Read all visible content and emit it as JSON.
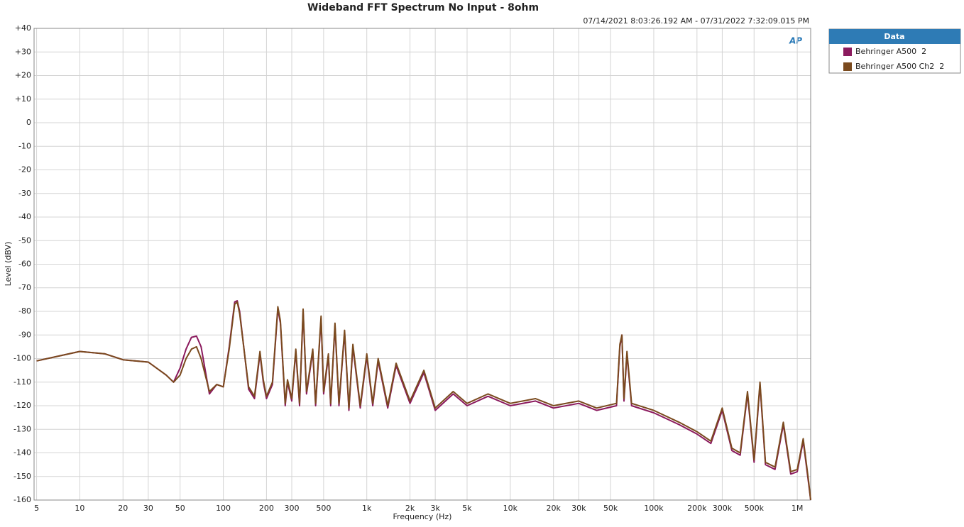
{
  "chart_data": {
    "type": "line",
    "title": "Wideband FFT Spectrum No Input - 8ohm",
    "subtitle": "07/14/2021 8:03:26.192 AM - 07/31/2022 7:32:09.015 PM",
    "x_label": "Frequency (Hz)",
    "y_label": "Level (dBV)",
    "logo": "AP",
    "legend_title": "Data",
    "legend": "right",
    "xscale": "log",
    "grid": true,
    "xlim": [
      4.8,
      1240000
    ],
    "ylim": [
      -160,
      40
    ],
    "xticks": [
      5,
      10,
      20,
      30,
      50,
      100,
      200,
      300,
      500,
      {
        "value": 1000,
        "label": "1k"
      },
      {
        "value": 2000,
        "label": "2k"
      },
      {
        "value": 3000,
        "label": "3k"
      },
      {
        "value": 5000,
        "label": "5k"
      },
      {
        "value": 10000,
        "label": "10k"
      },
      {
        "value": 20000,
        "label": "20k"
      },
      {
        "value": 30000,
        "label": "30k"
      },
      {
        "value": 50000,
        "label": "50k"
      },
      {
        "value": 100000,
        "label": "100k"
      },
      {
        "value": 200000,
        "label": "200k"
      },
      {
        "value": 300000,
        "label": "300k"
      },
      {
        "value": 500000,
        "label": "500k"
      },
      {
        "value": 1000000,
        "label": "1M"
      }
    ],
    "yticks": [
      {
        "value": 40,
        "label": "+40"
      },
      {
        "value": 30,
        "label": "+30"
      },
      {
        "value": 20,
        "label": "+20"
      },
      {
        "value": 10,
        "label": "+10"
      },
      0,
      -10,
      -20,
      -30,
      -40,
      -50,
      -60,
      -70,
      -80,
      -90,
      -100,
      -110,
      -120,
      -130,
      -140,
      -150,
      -160
    ],
    "x": [
      5,
      10,
      15,
      20,
      30,
      40,
      45,
      50,
      55,
      60,
      65,
      70,
      80,
      90,
      100,
      110,
      120,
      125,
      130,
      150,
      165,
      180,
      190,
      200,
      220,
      240,
      250,
      270,
      280,
      300,
      320,
      340,
      360,
      380,
      420,
      440,
      480,
      500,
      540,
      560,
      600,
      640,
      700,
      750,
      800,
      900,
      1000,
      1100,
      1200,
      1400,
      1600,
      2000,
      2500,
      3000,
      4000,
      5000,
      7000,
      10000,
      15000,
      20000,
      30000,
      40000,
      55000,
      58000,
      60000,
      62000,
      65000,
      70000,
      100000,
      150000,
      200000,
      250000,
      300000,
      350000,
      400000,
      450000,
      500000,
      550000,
      600000,
      700000,
      800000,
      900000,
      1000000,
      1100000,
      1200000,
      1240000
    ],
    "series": [
      {
        "name": "Behringer A500  2",
        "color": "#8b1a5e",
        "values": [
          -101,
          -97,
          -98,
          -100.5,
          -101.5,
          -107,
          -110,
          -104,
          -96,
          -91,
          -90.5,
          -95,
          -115,
          -111,
          -112,
          -95,
          -76,
          -75.5,
          -80,
          -113,
          -117,
          -98,
          -110,
          -117,
          -111,
          -79,
          -85,
          -120,
          -110,
          -118,
          -97,
          -120,
          -80,
          -115,
          -97,
          -120,
          -83,
          -115,
          -99,
          -120,
          -86,
          -120,
          -89,
          -122,
          -95,
          -121,
          -99,
          -120,
          -101,
          -121,
          -103,
          -119,
          -106,
          -122,
          -115,
          -120,
          -116,
          -120,
          -118,
          -121,
          -119,
          -122,
          -120,
          -95,
          -90,
          -118,
          -98,
          -120,
          -123,
          -128,
          -132,
          -136,
          -122,
          -139,
          -141,
          -115,
          -144,
          -111,
          -145,
          -147,
          -128,
          -149,
          -148,
          -135,
          -153,
          -160
        ]
      },
      {
        "name": "Behringer A500 Ch2  2",
        "color": "#7a4a1e",
        "values": [
          -101,
          -97,
          -98,
          -100.5,
          -101.5,
          -107,
          -110,
          -107,
          -100,
          -96,
          -95,
          -100,
          -114,
          -111,
          -112,
          -96,
          -77,
          -76,
          -81,
          -112,
          -116,
          -97,
          -109,
          -116,
          -110,
          -78,
          -84,
          -119,
          -109,
          -117,
          -96,
          -119,
          -79,
          -114,
          -96,
          -119,
          -82,
          -114,
          -98,
          -119,
          -85,
          -119,
          -88,
          -121,
          -94,
          -120,
          -98,
          -119,
          -100,
          -120,
          -102,
          -118,
          -105,
          -121,
          -114,
          -119,
          -115,
          -119,
          -117,
          -120,
          -118,
          -121,
          -119,
          -94,
          -90,
          -117,
          -97,
          -119,
          -122,
          -127,
          -131,
          -135,
          -121,
          -138,
          -140,
          -114,
          -143,
          -110,
          -144,
          -146,
          -127,
          -148,
          -147,
          -134,
          -152,
          -160
        ]
      }
    ]
  }
}
